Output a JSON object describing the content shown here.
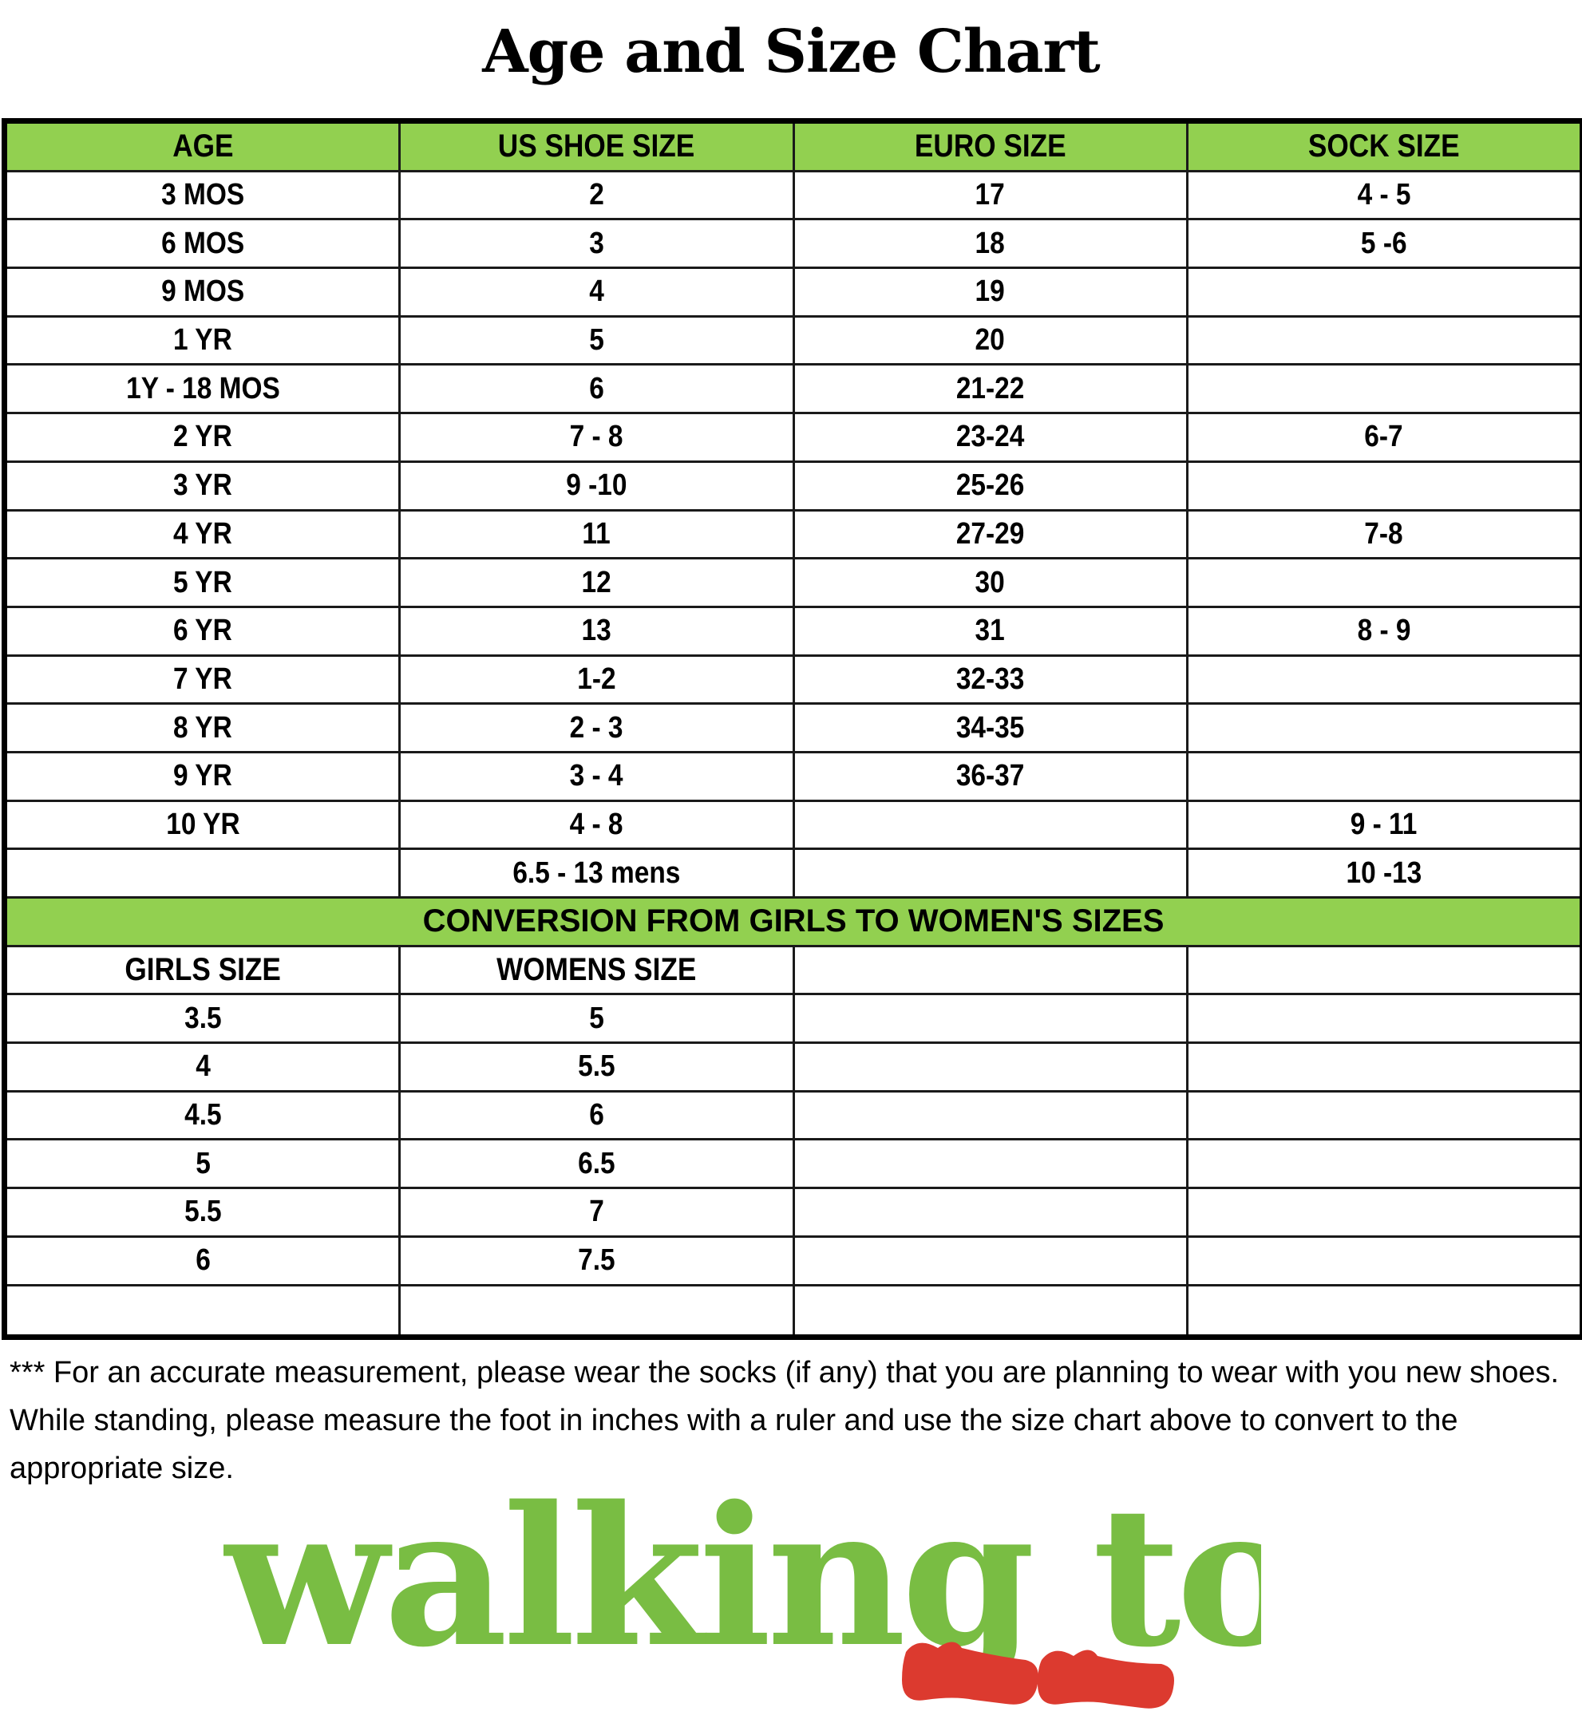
{
  "title": "Age and Size Chart",
  "colors": {
    "header_green": "#92d050",
    "logo_green": "#79bd43",
    "logo_red": "#dc3a2f"
  },
  "columns": [
    "AGE",
    "US SHOE SIZE",
    "EURO SIZE",
    "SOCK SIZE"
  ],
  "rows": [
    [
      "3 MOS",
      "2",
      "17",
      "4 - 5"
    ],
    [
      "6 MOS",
      "3",
      "18",
      "5 -6"
    ],
    [
      "9 MOS",
      "4",
      "19",
      ""
    ],
    [
      "1 YR",
      "5",
      "20",
      ""
    ],
    [
      "1Y - 18 MOS",
      "6",
      "21-22",
      ""
    ],
    [
      "2 YR",
      "7 - 8",
      "23-24",
      "6-7"
    ],
    [
      "3 YR",
      "9 -10",
      "25-26",
      ""
    ],
    [
      "4 YR",
      "11",
      "27-29",
      "7-8"
    ],
    [
      "5 YR",
      "12",
      "30",
      ""
    ],
    [
      "6 YR",
      "13",
      "31",
      "8 - 9"
    ],
    [
      "7 YR",
      "1-2",
      "32-33",
      ""
    ],
    [
      "8 YR",
      "2 - 3",
      "34-35",
      ""
    ],
    [
      "9 YR",
      "3 - 4",
      "36-37",
      ""
    ],
    [
      "10 YR",
      "4 - 8",
      "",
      "9 - 11"
    ],
    [
      "",
      "6.5 - 13 mens",
      "",
      "10 -13"
    ]
  ],
  "conversion": {
    "title": "CONVERSION FROM GIRLS TO WOMEN'S SIZES",
    "columns": [
      "GIRLS SIZE",
      "WOMENS SIZE",
      "",
      ""
    ],
    "rows": [
      [
        "3.5",
        "5",
        "",
        ""
      ],
      [
        "4",
        "5.5",
        "",
        ""
      ],
      [
        "4.5",
        "6",
        "",
        ""
      ],
      [
        "5",
        "6.5",
        "",
        ""
      ],
      [
        "5.5",
        "7",
        "",
        ""
      ],
      [
        "6",
        "7.5",
        "",
        ""
      ],
      [
        "",
        "",
        "",
        ""
      ]
    ]
  },
  "footnote": "*** For an accurate measurement, please wear the socks (if any) that you are planning to wear with you new shoes. While standing, please measure the foot in inches with a ruler and use the size chart above to convert to the appropriate size.",
  "logo": {
    "text": "walking tots"
  }
}
